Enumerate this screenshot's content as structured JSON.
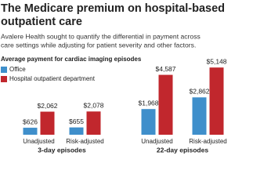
{
  "header": {
    "title_lines": [
      "The Medicare premium on hospital-based",
      "outpatient care"
    ],
    "subtitle_lines": [
      "Avalere Health sought to quantify the differential in payment across",
      "care settings while adjusting for patient severity and other factors."
    ],
    "caption": "Average payment for cardiac imaging episodes"
  },
  "chart_data": [
    {
      "type": "bar",
      "title": "3-day episodes",
      "categories": [
        "Unadjusted",
        "Risk-adjusted"
      ],
      "ylim": [
        0,
        7000
      ],
      "series": [
        {
          "name": "Office",
          "color": "#3f8fcb",
          "values": [
            626,
            655
          ],
          "value_labels": [
            "$626",
            "$655"
          ]
        },
        {
          "name": "Hospital outpatient department",
          "color": "#c1272d",
          "values": [
            2062,
            2078
          ],
          "value_labels": [
            "$2,062",
            "$2,078"
          ]
        }
      ]
    },
    {
      "type": "bar",
      "title": "22-day episodes",
      "categories": [
        "Unadjusted",
        "Risk-adjusted"
      ],
      "ylim": [
        0,
        6000
      ],
      "series": [
        {
          "name": "Office",
          "color": "#3f8fcb",
          "values": [
            1968,
            2862
          ],
          "value_labels": [
            "$1,968",
            "$2,862"
          ]
        },
        {
          "name": "Hospital outpatient department",
          "color": "#c1272d",
          "values": [
            4587,
            5148
          ],
          "value_labels": [
            "$4,587",
            "$5,148"
          ]
        }
      ]
    }
  ]
}
